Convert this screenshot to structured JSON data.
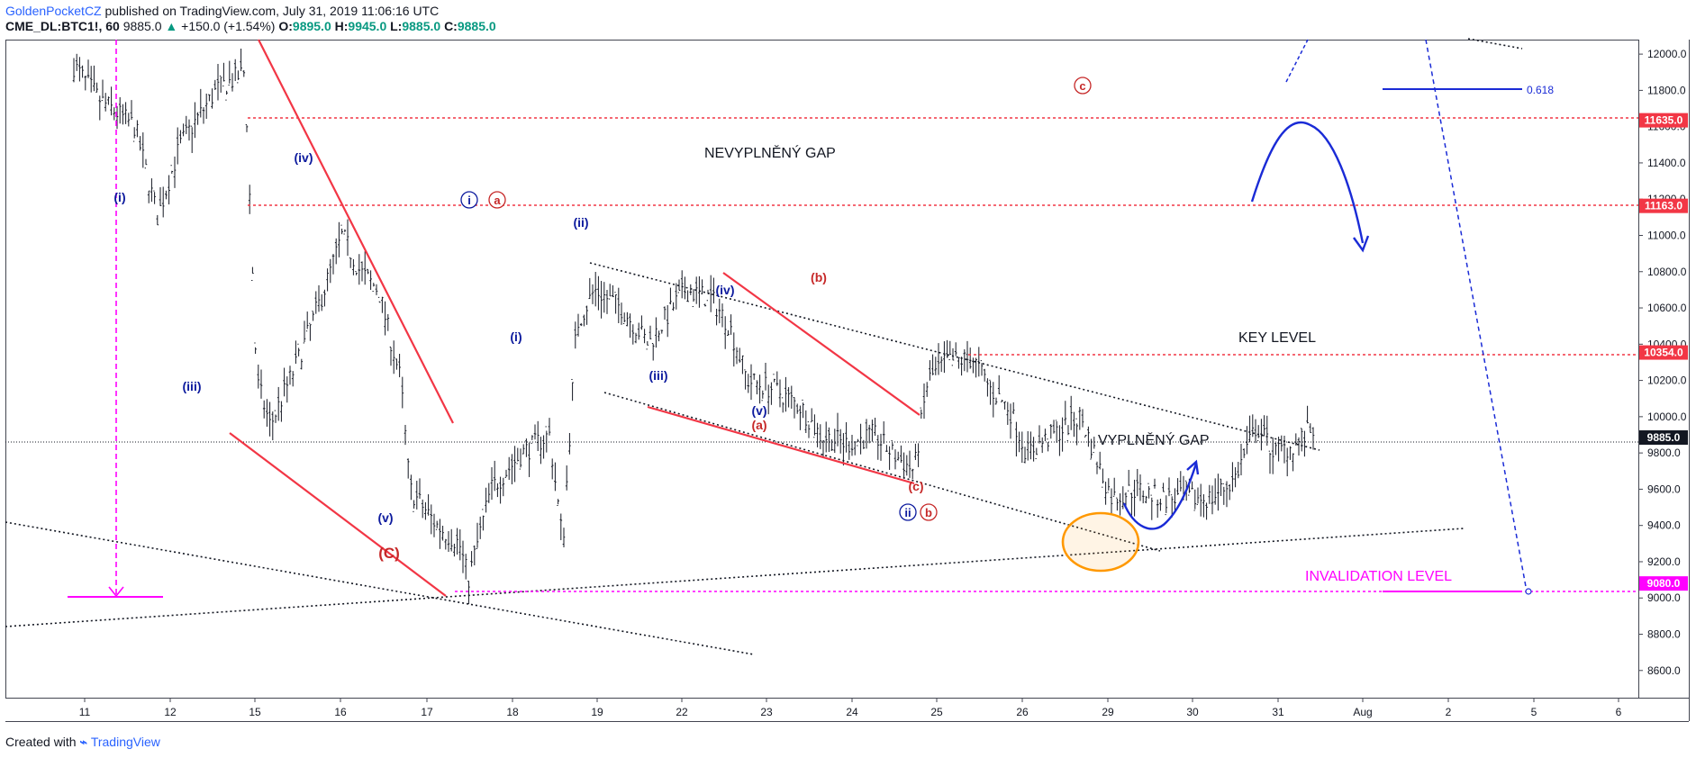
{
  "header": {
    "author": "GoldenPocketCZ",
    "published_text": " published on TradingView.com, July 31, 2019 11:06:16 UTC"
  },
  "ohlc": {
    "symbol": "CME_DL:BTC1!, 60",
    "last": "9885.0",
    "change": "+150.0 (+1.54%)",
    "o_label": "O:",
    "o": "9895.0",
    "h_label": "H:",
    "h": "9945.0",
    "l_label": "L:",
    "l": "9885.0",
    "c_label": "C:",
    "c": "9885.0"
  },
  "footer": {
    "created_with": "Created with ",
    "brand": "TradingView"
  },
  "chart_data": {
    "type": "candlestick",
    "ylim": [
      8450,
      12080
    ],
    "y_ticks": [
      8600,
      8800,
      9000,
      9200,
      9400,
      9600,
      9800,
      10000,
      10200,
      10400,
      10600,
      10800,
      11000,
      11200,
      11400,
      11600,
      11800,
      12000
    ],
    "x_ticks": [
      "11",
      "12",
      "15",
      "16",
      "17",
      "18",
      "19",
      "22",
      "23",
      "24",
      "25",
      "26",
      "29",
      "30",
      "31",
      "Aug",
      "2",
      "5",
      "6"
    ],
    "price_tags": [
      {
        "value": 11635.0,
        "label": "11635.0",
        "color": "#f23645"
      },
      {
        "value": 11163.0,
        "label": "11163.0",
        "color": "#f23645"
      },
      {
        "value": 10354.0,
        "label": "10354.0",
        "color": "#f23645"
      },
      {
        "value": 9885.0,
        "label": "9885.0",
        "color": "#131722"
      },
      {
        "value": 9080.0,
        "label": "9080.0",
        "color": "#ff00ff"
      }
    ],
    "fib_label": "0.618",
    "annotations": {
      "gap_unfilled": "NEVYPLNĚNÝ GAP",
      "gap_filled": "VYPLNĚNÝ GAP",
      "key_level": "KEY LEVEL",
      "invalidation": "INVALIDATION LEVEL"
    },
    "wave_labels": [
      {
        "text": "(i)",
        "x": 133,
        "y": 224,
        "color": "#0d1b9e",
        "size": 14
      },
      {
        "text": "(iii)",
        "x": 213,
        "y": 434,
        "color": "#0d1b9e",
        "size": 14
      },
      {
        "text": "(iv)",
        "x": 337,
        "y": 180,
        "color": "#0d1b9e",
        "size": 14
      },
      {
        "text": "(v)",
        "x": 428,
        "y": 580,
        "color": "#0d1b9e",
        "size": 14
      },
      {
        "text": "(C)",
        "x": 432,
        "y": 620,
        "color": "#c62828",
        "size": 17
      },
      {
        "text": "(ii)",
        "x": 645,
        "y": 252,
        "color": "#0d1b9e",
        "size": 14
      },
      {
        "text": "(i)",
        "x": 573,
        "y": 379,
        "color": "#0d1b9e",
        "size": 14
      },
      {
        "text": "(iii)",
        "x": 731,
        "y": 422,
        "color": "#0d1b9e",
        "size": 14
      },
      {
        "text": "(iv)",
        "x": 805,
        "y": 327,
        "color": "#0d1b9e",
        "size": 14
      },
      {
        "text": "(v)",
        "x": 843,
        "y": 461,
        "color": "#0d1b9e",
        "size": 14
      },
      {
        "text": "(a)",
        "x": 843,
        "y": 477,
        "color": "#c62828",
        "size": 14
      },
      {
        "text": "(b)",
        "x": 909,
        "y": 313,
        "color": "#c62828",
        "size": 14
      },
      {
        "text": "(c)",
        "x": 1017,
        "y": 545,
        "color": "#c62828",
        "size": 14
      }
    ],
    "circle_labels": [
      {
        "text": "i",
        "x": 521,
        "y": 223,
        "color": "#0d1b9e"
      },
      {
        "text": "a",
        "x": 552,
        "y": 223,
        "color": "#c62828"
      },
      {
        "text": "ii",
        "x": 1008,
        "y": 570,
        "color": "#0d1b9e"
      },
      {
        "text": "b",
        "x": 1031,
        "y": 570,
        "color": "#c62828"
      },
      {
        "text": "c",
        "x": 1202,
        "y": 96,
        "color": "#c62828"
      }
    ]
  }
}
